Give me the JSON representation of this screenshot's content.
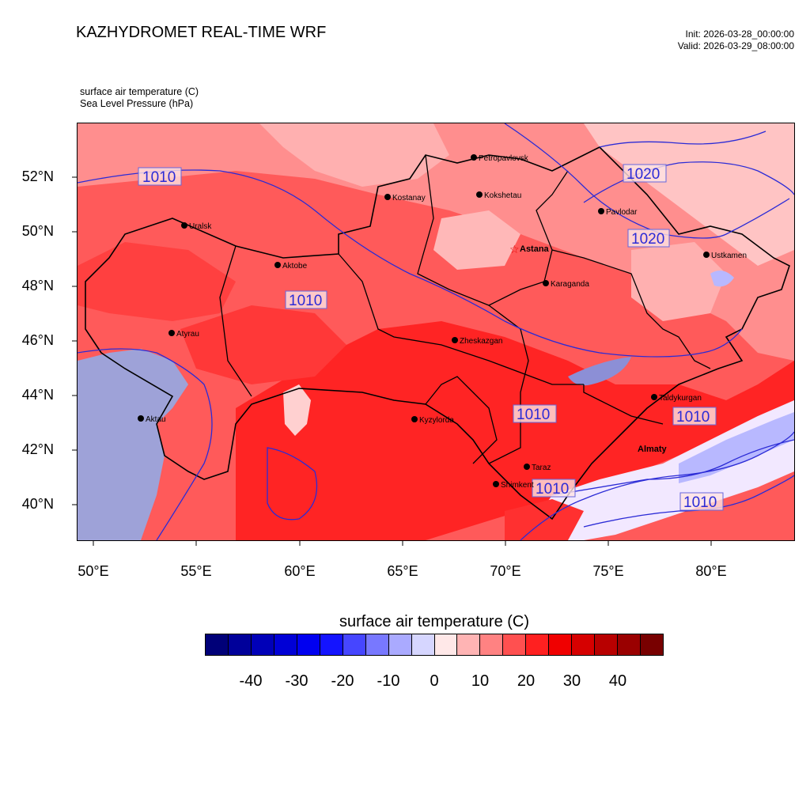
{
  "header": {
    "title": "KAZHYDROMET REAL-TIME WRF",
    "init": "Init: 2026-03-28_00:00:00",
    "valid": "Valid: 2026-03-29_08:00:00",
    "var1": "surface air temperature   (C)",
    "var2": "Sea Level Pressure   (hPa)"
  },
  "axes": {
    "lat_labels": [
      "52°N",
      "50°N",
      "48°N",
      "46°N",
      "44°N",
      "42°N",
      "40°N"
    ],
    "lon_labels": [
      "50°E",
      "55°E",
      "60°E",
      "65°E",
      "70°E",
      "75°E",
      "80°E"
    ]
  },
  "cities": [
    {
      "name": "Petropavlovsk"
    },
    {
      "name": "Kostanay"
    },
    {
      "name": "Kokshetau"
    },
    {
      "name": "Uralsk"
    },
    {
      "name": "Pavlodar"
    },
    {
      "name": "Aktobe"
    },
    {
      "name": "Astana"
    },
    {
      "name": "Ustkamen"
    },
    {
      "name": "Karaganda"
    },
    {
      "name": "Atyrau"
    },
    {
      "name": "Zheskazgan"
    },
    {
      "name": "Taldykurgan"
    },
    {
      "name": "Kyzylorda"
    },
    {
      "name": "Aktau"
    },
    {
      "name": "Almaty"
    },
    {
      "name": "Taraz"
    },
    {
      "name": "Shimkent"
    }
  ],
  "isobar_labels": [
    "1010",
    "1020",
    "1010",
    "1020",
    "1010",
    "1010",
    "1010",
    "1010"
  ],
  "colorbar": {
    "title": "surface air temperature  (C)",
    "tick_labels": [
      "-40",
      "-30",
      "-20",
      "-10",
      "0",
      "10",
      "20",
      "30",
      "40"
    ],
    "colors": [
      "#000078",
      "#00009a",
      "#0000b8",
      "#0000d6",
      "#0000f0",
      "#1414ff",
      "#4646ff",
      "#7878ff",
      "#aaaaff",
      "#d6d6ff",
      "#ffe8e8",
      "#ffb4b4",
      "#ff8282",
      "#ff5050",
      "#ff2020",
      "#f00000",
      "#d60000",
      "#b80000",
      "#9a0000",
      "#780000"
    ]
  },
  "palette": {
    "ocean": "#9ea2d8",
    "land_base": "#ff5a5a",
    "isobar": "#2b2bd6"
  }
}
